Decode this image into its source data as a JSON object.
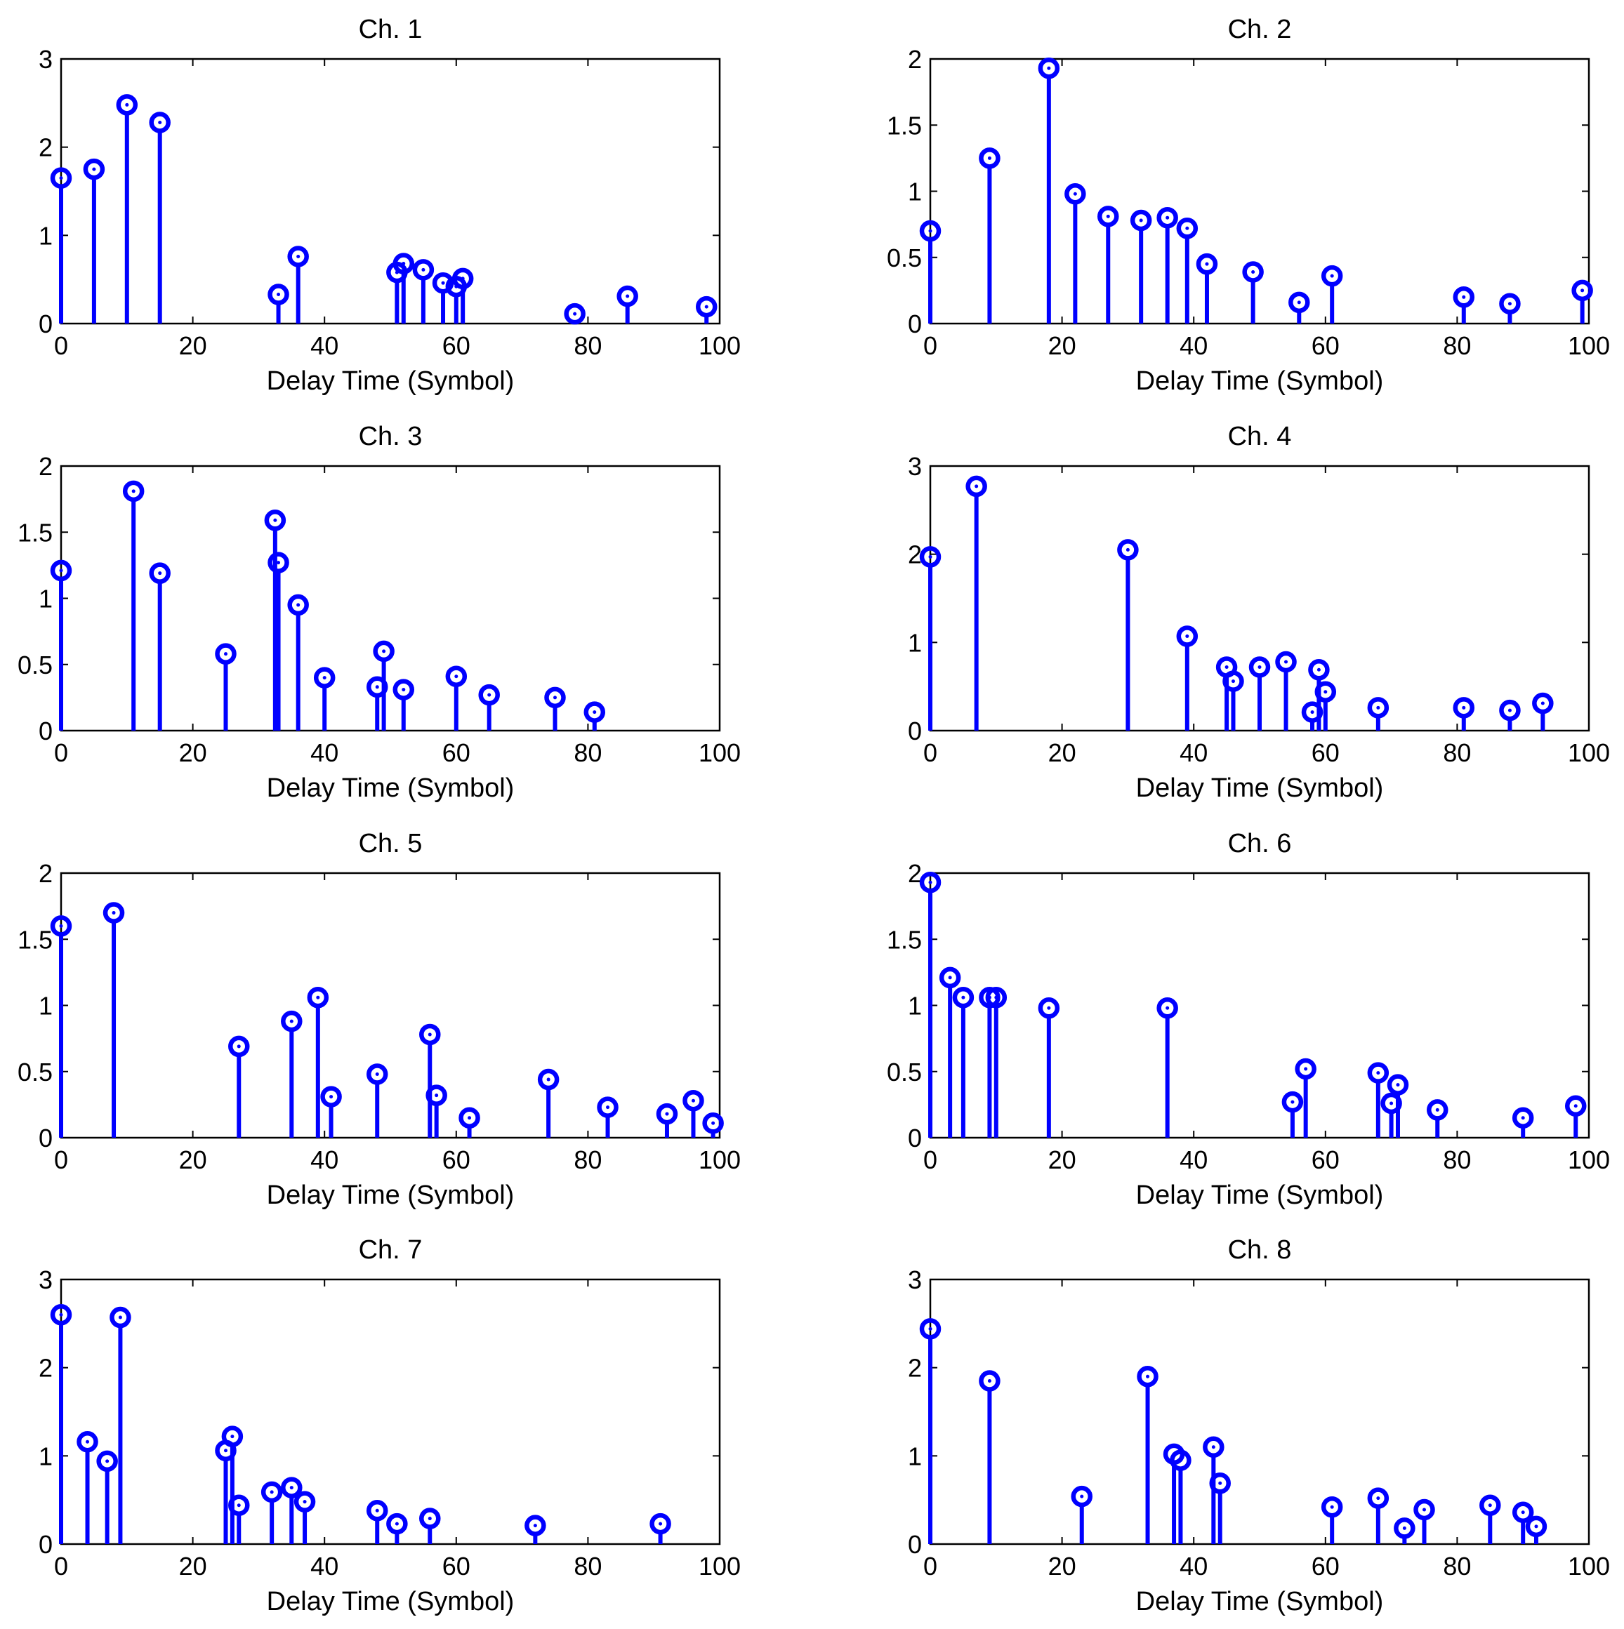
{
  "chart_data": [
    {
      "type": "stem",
      "title": "Ch. 1",
      "xlabel": "Delay Time (Symbol)",
      "ylabel": "",
      "xlim": [
        0,
        100
      ],
      "ylim": [
        0,
        3
      ],
      "xticks": [
        0,
        20,
        40,
        60,
        80,
        100
      ],
      "yticks": [
        0,
        1,
        2,
        3
      ],
      "color": "#0000ff",
      "x": [
        0,
        5,
        10,
        15,
        33,
        36,
        51,
        52,
        55,
        58,
        60,
        61,
        78,
        86,
        98
      ],
      "y": [
        1.65,
        1.75,
        2.48,
        2.28,
        0.33,
        0.76,
        0.58,
        0.68,
        0.61,
        0.46,
        0.42,
        0.51,
        0.11,
        0.31,
        0.19
      ]
    },
    {
      "type": "stem",
      "title": "Ch. 2",
      "xlabel": "Delay Time (Symbol)",
      "ylabel": "",
      "xlim": [
        0,
        100
      ],
      "ylim": [
        0,
        2
      ],
      "xticks": [
        0,
        20,
        40,
        60,
        80,
        100
      ],
      "yticks": [
        0,
        0.5,
        1,
        1.5,
        2
      ],
      "color": "#0000ff",
      "x": [
        0,
        9,
        18,
        22,
        27,
        32,
        36,
        39,
        42,
        49,
        56,
        61,
        81,
        88,
        99
      ],
      "y": [
        0.7,
        1.25,
        1.93,
        0.98,
        0.81,
        0.78,
        0.8,
        0.72,
        0.45,
        0.39,
        0.16,
        0.36,
        0.2,
        0.15,
        0.25
      ]
    },
    {
      "type": "stem",
      "title": "Ch. 3",
      "xlabel": "Delay Time (Symbol)",
      "ylabel": "",
      "xlim": [
        0,
        100
      ],
      "ylim": [
        0,
        2
      ],
      "xticks": [
        0,
        20,
        40,
        60,
        80,
        100
      ],
      "yticks": [
        0,
        0.5,
        1,
        1.5,
        2
      ],
      "color": "#0000ff",
      "x": [
        0,
        11,
        15,
        25,
        32.5,
        33,
        36,
        40,
        48,
        49,
        52,
        60,
        65,
        75,
        81
      ],
      "y": [
        1.21,
        1.81,
        1.19,
        0.58,
        1.59,
        1.27,
        0.95,
        0.4,
        0.33,
        0.6,
        0.31,
        0.41,
        0.27,
        0.25,
        0.14
      ]
    },
    {
      "type": "stem",
      "title": "Ch. 4",
      "xlabel": "Delay Time (Symbol)",
      "ylabel": "",
      "xlim": [
        0,
        100
      ],
      "ylim": [
        0,
        3
      ],
      "xticks": [
        0,
        20,
        40,
        60,
        80,
        100
      ],
      "yticks": [
        0,
        1,
        2,
        3
      ],
      "color": "#0000ff",
      "x": [
        0,
        7,
        30,
        39,
        45,
        46,
        50,
        54,
        58,
        59,
        60,
        68,
        81,
        88,
        93
      ],
      "y": [
        1.97,
        2.77,
        2.05,
        1.07,
        0.72,
        0.56,
        0.72,
        0.78,
        0.21,
        0.69,
        0.44,
        0.26,
        0.26,
        0.23,
        0.31
      ]
    },
    {
      "type": "stem",
      "title": "Ch. 5",
      "xlabel": "Delay Time (Symbol)",
      "ylabel": "",
      "xlim": [
        0,
        100
      ],
      "ylim": [
        0,
        2
      ],
      "xticks": [
        0,
        20,
        40,
        60,
        80,
        100
      ],
      "yticks": [
        0,
        0.5,
        1,
        1.5,
        2
      ],
      "color": "#0000ff",
      "x": [
        0,
        8,
        27,
        35,
        39,
        41,
        48,
        56,
        57,
        62,
        74,
        83,
        92,
        96,
        99
      ],
      "y": [
        1.6,
        1.7,
        0.69,
        0.88,
        1.06,
        0.31,
        0.48,
        0.78,
        0.32,
        0.15,
        0.44,
        0.23,
        0.18,
        0.28,
        0.11
      ]
    },
    {
      "type": "stem",
      "title": "Ch. 6",
      "xlabel": "Delay Time (Symbol)",
      "ylabel": "",
      "xlim": [
        0,
        100
      ],
      "ylim": [
        0,
        2
      ],
      "xticks": [
        0,
        20,
        40,
        60,
        80,
        100
      ],
      "yticks": [
        0,
        0.5,
        1,
        1.5,
        2
      ],
      "color": "#0000ff",
      "x": [
        0,
        3,
        5,
        9,
        10,
        18,
        36,
        55,
        57,
        68,
        70,
        71,
        77,
        90,
        98
      ],
      "y": [
        1.93,
        1.21,
        1.06,
        1.06,
        1.06,
        0.98,
        0.98,
        0.27,
        0.52,
        0.49,
        0.26,
        0.4,
        0.21,
        0.15,
        0.24
      ]
    },
    {
      "type": "stem",
      "title": "Ch. 7",
      "xlabel": "Delay Time (Symbol)",
      "ylabel": "",
      "xlim": [
        0,
        100
      ],
      "ylim": [
        0,
        3
      ],
      "xticks": [
        0,
        20,
        40,
        60,
        80,
        100
      ],
      "yticks": [
        0,
        1,
        2,
        3
      ],
      "color": "#0000ff",
      "x": [
        0,
        4,
        7,
        9,
        25,
        26,
        27,
        32,
        35,
        37,
        48,
        51,
        56,
        72,
        91
      ],
      "y": [
        2.6,
        1.16,
        0.94,
        2.57,
        1.06,
        1.22,
        0.44,
        0.59,
        0.64,
        0.48,
        0.38,
        0.23,
        0.29,
        0.21,
        0.23
      ]
    },
    {
      "type": "stem",
      "title": "Ch. 8",
      "xlabel": "Delay Time (Symbol)",
      "ylabel": "",
      "xlim": [
        0,
        100
      ],
      "ylim": [
        0,
        3
      ],
      "xticks": [
        0,
        20,
        40,
        60,
        80,
        100
      ],
      "yticks": [
        0,
        1,
        2,
        3
      ],
      "color": "#0000ff",
      "x": [
        0,
        9,
        23,
        33,
        37,
        38,
        43,
        44,
        61,
        68,
        72,
        75,
        85,
        90,
        92
      ],
      "y": [
        2.44,
        1.85,
        0.54,
        1.9,
        1.02,
        0.95,
        1.1,
        0.69,
        0.42,
        0.52,
        0.18,
        0.39,
        0.44,
        0.36,
        0.2
      ]
    }
  ]
}
